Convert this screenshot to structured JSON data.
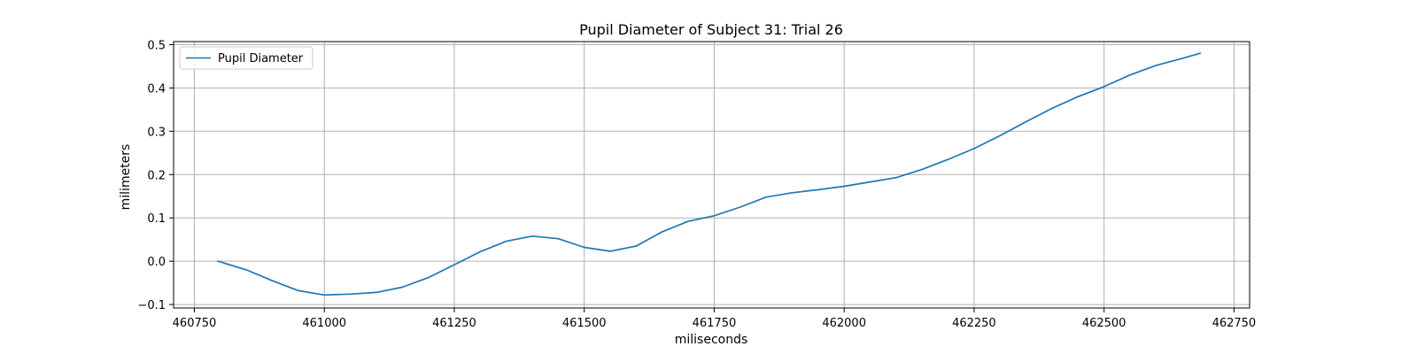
{
  "chart_data": {
    "type": "line",
    "title": "Pupil Diameter of Subject 31: Trial 26",
    "xlabel": "miliseconds",
    "ylabel": "milimeters",
    "xlim": [
      460710,
      462780
    ],
    "ylim": [
      -0.108,
      0.507
    ],
    "xticks": [
      460750,
      461000,
      461250,
      461500,
      461750,
      462000,
      462250,
      462500,
      462750
    ],
    "yticks": [
      -0.1,
      0.0,
      0.1,
      0.2,
      0.3,
      0.4,
      0.5
    ],
    "grid": true,
    "legend": {
      "placement": "upper-left",
      "entries": [
        "Pupil Diameter"
      ]
    },
    "series": [
      {
        "name": "Pupil Diameter",
        "color": "#1f77b4",
        "x": [
          460795,
          460850,
          460900,
          460950,
          461000,
          461050,
          461100,
          461150,
          461200,
          461250,
          461300,
          461350,
          461400,
          461450,
          461500,
          461550,
          461600,
          461650,
          461700,
          461750,
          461800,
          461850,
          461900,
          461950,
          462000,
          462050,
          462100,
          462150,
          462200,
          462250,
          462300,
          462350,
          462400,
          462450,
          462500,
          462550,
          462600,
          462650,
          462685
        ],
        "values": [
          0.0,
          -0.02,
          -0.045,
          -0.068,
          -0.078,
          -0.076,
          -0.072,
          -0.06,
          -0.038,
          -0.008,
          0.022,
          0.046,
          0.058,
          0.052,
          0.032,
          0.023,
          0.035,
          0.068,
          0.092,
          0.105,
          0.125,
          0.148,
          0.158,
          0.165,
          0.173,
          0.183,
          0.193,
          0.212,
          0.235,
          0.26,
          0.29,
          0.322,
          0.353,
          0.38,
          0.403,
          0.43,
          0.452,
          0.468,
          0.48
        ]
      }
    ]
  }
}
